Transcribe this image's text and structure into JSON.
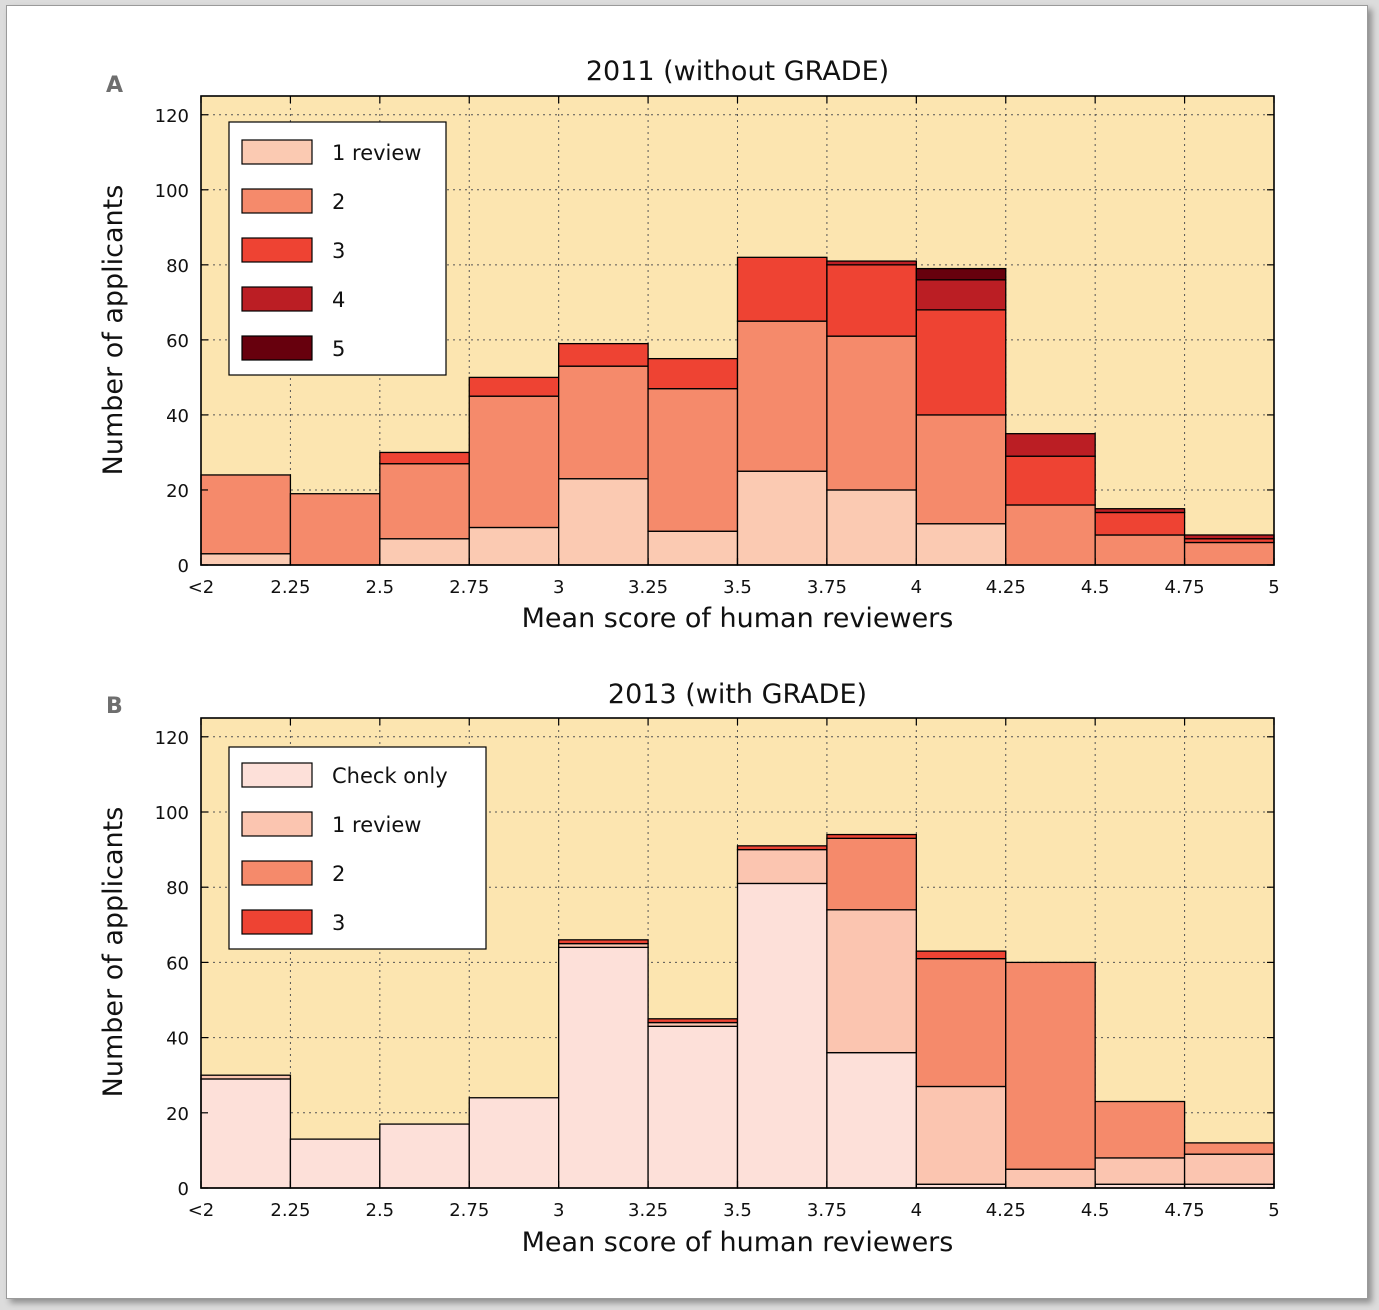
{
  "chart_data": [
    {
      "type": "bar",
      "stacked": true,
      "panel_label": "A",
      "title": "2011 (without GRADE)",
      "xlabel": "Mean score of human reviewers",
      "ylabel": "Number of applicants",
      "x_ticks": [
        "<2",
        "2.25",
        "2.5",
        "2.75",
        "3",
        "3.25",
        "3.5",
        "3.75",
        "4",
        "4.25",
        "4.5",
        "4.75",
        "5"
      ],
      "y_ticks": [
        "0",
        "20",
        "40",
        "60",
        "80",
        "100",
        "120"
      ],
      "ylim": [
        0,
        125
      ],
      "grid": true,
      "legend_position": "top-left",
      "bins": [
        "<2-2.25",
        "2.25-2.5",
        "2.5-2.75",
        "2.75-3",
        "3-3.25",
        "3.25-3.5",
        "3.5-3.75",
        "3.75-4",
        "4-4.25",
        "4.25-4.5",
        "4.5-4.75",
        "4.75-5"
      ],
      "series": [
        {
          "name": "1 review",
          "color": "#fbcab2",
          "values": [
            3,
            0,
            7,
            10,
            23,
            9,
            25,
            20,
            11,
            0,
            0,
            0
          ]
        },
        {
          "name": "2",
          "color": "#f58a6b",
          "values": [
            21,
            19,
            20,
            35,
            30,
            38,
            40,
            41,
            29,
            16,
            8,
            6
          ]
        },
        {
          "name": "3",
          "color": "#ee4333",
          "values": [
            0,
            0,
            3,
            5,
            6,
            8,
            17,
            19,
            28,
            13,
            6,
            1
          ]
        },
        {
          "name": "4",
          "color": "#bb1e24",
          "values": [
            0,
            0,
            0,
            0,
            0,
            0,
            0,
            1,
            8,
            6,
            1,
            1
          ]
        },
        {
          "name": "5",
          "color": "#67000d",
          "values": [
            0,
            0,
            0,
            0,
            0,
            0,
            0,
            0,
            3,
            0,
            0,
            0
          ]
        }
      ]
    },
    {
      "type": "bar",
      "stacked": true,
      "panel_label": "B",
      "title": "2013 (with GRADE)",
      "xlabel": "Mean score of human reviewers",
      "ylabel": "Number of applicants",
      "x_ticks": [
        "<2",
        "2.25",
        "2.5",
        "2.75",
        "3",
        "3.25",
        "3.5",
        "3.75",
        "4",
        "4.25",
        "4.5",
        "4.75",
        "5"
      ],
      "y_ticks": [
        "0",
        "20",
        "40",
        "60",
        "80",
        "100",
        "120"
      ],
      "ylim": [
        0,
        125
      ],
      "grid": true,
      "legend_position": "top-left",
      "bins": [
        "<2-2.25",
        "2.25-2.5",
        "2.5-2.75",
        "2.75-3",
        "3-3.25",
        "3.25-3.5",
        "3.5-3.75",
        "3.75-4",
        "4-4.25",
        "4.25-4.5",
        "4.5-4.75",
        "4.75-5"
      ],
      "series": [
        {
          "name": "Check only",
          "color": "#fde0d9",
          "values": [
            29,
            13,
            17,
            24,
            64,
            43,
            81,
            36,
            1,
            0,
            1,
            1
          ]
        },
        {
          "name": "1 review",
          "color": "#fbc5b0",
          "values": [
            1,
            0,
            0,
            0,
            1,
            1,
            9,
            38,
            26,
            5,
            7,
            8
          ]
        },
        {
          "name": "2",
          "color": "#f58a6b",
          "values": [
            0,
            0,
            0,
            0,
            0,
            0,
            0,
            19,
            34,
            55,
            15,
            3
          ]
        },
        {
          "name": "3",
          "color": "#ee4333",
          "values": [
            0,
            0,
            0,
            0,
            1,
            1,
            1,
            1,
            2,
            0,
            0,
            0
          ]
        }
      ]
    }
  ],
  "style": {
    "plot_background": "#fce5b0",
    "grid_color": "#555555"
  }
}
